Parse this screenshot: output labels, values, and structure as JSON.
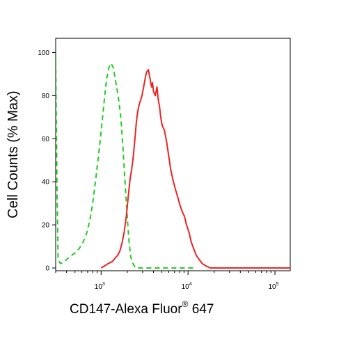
{
  "chart_data": {
    "type": "line",
    "title": "",
    "xlabel": "CD147-Alexa Fluor",
    "xlabel_superscript": "®",
    "xlabel_suffix": " 647",
    "ylabel": "Cell Counts (% Max)",
    "x_scale": "log",
    "xlim": [
      300,
      150000
    ],
    "ylim": [
      0,
      105
    ],
    "y_ticks": [
      0,
      20,
      40,
      60,
      80,
      100
    ],
    "x_ticks": [
      {
        "value": 1000,
        "base": "10",
        "exp": "3"
      },
      {
        "value": 10000,
        "base": "10",
        "exp": "4"
      },
      {
        "value": 100000,
        "base": "10",
        "exp": "5"
      }
    ],
    "grid": false,
    "legend": "none",
    "series": [
      {
        "color": "#22cc22",
        "style": "dashed",
        "points": [
          [
            300,
            100
          ],
          [
            310,
            40
          ],
          [
            320,
            4
          ],
          [
            340,
            2
          ],
          [
            380,
            3
          ],
          [
            430,
            5
          ],
          [
            500,
            7
          ],
          [
            560,
            9
          ],
          [
            620,
            12
          ],
          [
            680,
            16
          ],
          [
            740,
            22
          ],
          [
            800,
            30
          ],
          [
            860,
            40
          ],
          [
            920,
            50
          ],
          [
            980,
            60
          ],
          [
            1040,
            70
          ],
          [
            1100,
            80
          ],
          [
            1160,
            88
          ],
          [
            1230,
            93
          ],
          [
            1300,
            95
          ],
          [
            1380,
            93
          ],
          [
            1450,
            88
          ],
          [
            1540,
            82
          ],
          [
            1620,
            76
          ],
          [
            1700,
            68
          ],
          [
            1780,
            56
          ],
          [
            1860,
            44
          ],
          [
            1940,
            32
          ],
          [
            2020,
            21
          ],
          [
            2100,
            12
          ],
          [
            2200,
            5
          ],
          [
            2320,
            2
          ],
          [
            2500,
            0
          ],
          [
            3000,
            0
          ],
          [
            4000,
            0
          ],
          [
            6000,
            0
          ],
          [
            8000,
            0
          ],
          [
            12000,
            0
          ]
        ]
      },
      {
        "color": "#ee2222",
        "style": "solid",
        "points": [
          [
            1000,
            0
          ],
          [
            1100,
            1
          ],
          [
            1200,
            2
          ],
          [
            1350,
            3
          ],
          [
            1480,
            5
          ],
          [
            1560,
            6
          ],
          [
            1650,
            8
          ],
          [
            1750,
            12
          ],
          [
            1850,
            17
          ],
          [
            1950,
            24
          ],
          [
            2050,
            33
          ],
          [
            2150,
            41
          ],
          [
            2250,
            46
          ],
          [
            2350,
            52
          ],
          [
            2450,
            60
          ],
          [
            2550,
            68
          ],
          [
            2650,
            73
          ],
          [
            2750,
            76
          ],
          [
            2850,
            78
          ],
          [
            2950,
            80
          ],
          [
            3050,
            83
          ],
          [
            3150,
            86
          ],
          [
            3250,
            89
          ],
          [
            3350,
            91
          ],
          [
            3500,
            92
          ],
          [
            3650,
            88
          ],
          [
            3800,
            84
          ],
          [
            3900,
            86
          ],
          [
            4000,
            82
          ],
          [
            4200,
            80
          ],
          [
            4400,
            84
          ],
          [
            4550,
            78
          ],
          [
            4700,
            75
          ],
          [
            4850,
            70
          ],
          [
            5050,
            66
          ],
          [
            5350,
            64
          ],
          [
            5700,
            58
          ],
          [
            6000,
            52
          ],
          [
            6300,
            46
          ],
          [
            6700,
            41
          ],
          [
            7100,
            37
          ],
          [
            7600,
            33
          ],
          [
            8100,
            29
          ],
          [
            8600,
            26
          ],
          [
            9100,
            24
          ],
          [
            9600,
            20
          ],
          [
            10200,
            17
          ],
          [
            10900,
            12
          ],
          [
            11600,
            9
          ],
          [
            12400,
            6
          ],
          [
            13400,
            4
          ],
          [
            14600,
            2
          ],
          [
            16000,
            1
          ],
          [
            18000,
            0
          ],
          [
            20000,
            0
          ],
          [
            30000,
            0
          ],
          [
            60000,
            0
          ],
          [
            100000,
            0
          ],
          [
            150000,
            0
          ]
        ]
      }
    ]
  }
}
